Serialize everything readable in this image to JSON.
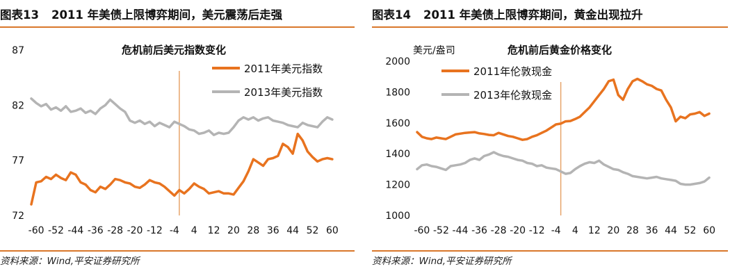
{
  "left": {
    "figure_number": "图表13",
    "figure_title": "2011 年美债上限博弈期间，美元震荡后走强",
    "source": "资料来源：Wind,平安证券研究所"
  },
  "right": {
    "figure_number": "图表14",
    "figure_title": "2011 年美债上限博弈期间，黄金出现拉升",
    "source": "资料来源：Wind,平安证券研究所"
  },
  "colors": {
    "series_2011": "#e8731f",
    "series_2013": "#b4b4b4",
    "marker_line": "#e7a46a",
    "rule": "#d9772a"
  },
  "chart_data": [
    {
      "type": "line",
      "title": "危机前后美元指数变化",
      "xlabel": "",
      "ylabel": "",
      "ylim": [
        72,
        87
      ],
      "yticks": [
        72,
        77,
        82,
        87
      ],
      "xlim": [
        -62,
        62
      ],
      "xticks": [
        "-60",
        "-52",
        "-44",
        "-36",
        "-28",
        "-20",
        "-12",
        "-4",
        "4",
        "12",
        "20",
        "28",
        "36",
        "44",
        "52",
        "60"
      ],
      "vertical_marker_x": -2,
      "grid": false,
      "legend_position": "top-right",
      "series": [
        {
          "name": "2011年美元指数",
          "x": [
            -62,
            -60,
            -58,
            -56,
            -54,
            -52,
            -50,
            -48,
            -46,
            -44,
            -42,
            -40,
            -38,
            -36,
            -34,
            -32,
            -30,
            -28,
            -26,
            -24,
            -22,
            -20,
            -18,
            -16,
            -14,
            -12,
            -10,
            -8,
            -6,
            -4,
            -2,
            0,
            2,
            4,
            6,
            8,
            10,
            12,
            14,
            16,
            18,
            20,
            22,
            24,
            26,
            28,
            30,
            32,
            34,
            36,
            38,
            40,
            42,
            44,
            46,
            48,
            50,
            52,
            54,
            56,
            58,
            60
          ],
          "values": [
            73.0,
            75.0,
            75.1,
            75.5,
            75.3,
            75.7,
            75.4,
            75.2,
            75.9,
            75.7,
            75.0,
            74.8,
            74.3,
            74.1,
            74.6,
            74.4,
            74.8,
            75.3,
            75.2,
            75.0,
            74.9,
            74.6,
            74.5,
            74.8,
            75.2,
            75.0,
            74.9,
            74.6,
            74.2,
            73.8,
            74.3,
            74.0,
            74.4,
            74.9,
            74.6,
            74.4,
            74.0,
            74.1,
            74.2,
            74.0,
            74.0,
            73.9,
            74.5,
            75.1,
            76.0,
            77.1,
            76.8,
            76.5,
            77.1,
            77.2,
            77.4,
            78.5,
            78.2,
            77.6,
            79.4,
            78.8,
            77.8,
            77.3,
            76.9,
            77.1,
            77.2,
            77.1
          ]
        },
        {
          "name": "2013年美元指数",
          "x": [
            -62,
            -60,
            -58,
            -56,
            -54,
            -52,
            -50,
            -48,
            -46,
            -44,
            -42,
            -40,
            -38,
            -36,
            -34,
            -32,
            -30,
            -28,
            -26,
            -24,
            -22,
            -20,
            -18,
            -16,
            -14,
            -12,
            -10,
            -8,
            -6,
            -4,
            -2,
            0,
            2,
            4,
            6,
            8,
            10,
            12,
            14,
            16,
            18,
            20,
            22,
            24,
            26,
            28,
            30,
            32,
            34,
            36,
            38,
            40,
            42,
            44,
            46,
            48,
            50,
            52,
            54,
            56,
            58,
            60
          ],
          "values": [
            82.6,
            82.2,
            81.9,
            82.1,
            81.6,
            81.8,
            81.5,
            81.9,
            81.4,
            81.5,
            81.7,
            81.3,
            81.5,
            81.2,
            81.7,
            82.0,
            82.5,
            82.1,
            81.7,
            81.4,
            80.6,
            80.4,
            80.6,
            80.3,
            80.5,
            80.1,
            80.4,
            80.2,
            80.0,
            80.5,
            80.3,
            80.1,
            79.8,
            79.7,
            79.4,
            79.5,
            79.7,
            79.3,
            79.5,
            79.4,
            79.5,
            80.0,
            80.6,
            80.9,
            80.7,
            80.9,
            80.6,
            80.8,
            80.9,
            80.6,
            80.5,
            80.4,
            80.2,
            80.1,
            80.0,
            80.4,
            80.2,
            80.1,
            80.0,
            80.5,
            80.9,
            80.7
          ]
        }
      ]
    },
    {
      "type": "line",
      "title": "危机前后黄金价格变化",
      "xlabel": "",
      "ylabel": "美元/盎司",
      "ylim": [
        1000,
        2000
      ],
      "yticks": [
        1000,
        1200,
        1400,
        1600,
        1800,
        2000
      ],
      "xlim": [
        -62,
        62
      ],
      "xticks": [
        "-60",
        "-52",
        "-44",
        "-36",
        "-28",
        "-20",
        "-12",
        "-4",
        "4",
        "12",
        "20",
        "28",
        "36",
        "44",
        "52",
        "60"
      ],
      "vertical_marker_x": -2,
      "grid": false,
      "legend_position": "top-left",
      "series": [
        {
          "name": "2011年伦敦现金",
          "x": [
            -62,
            -60,
            -58,
            -56,
            -54,
            -52,
            -50,
            -48,
            -46,
            -44,
            -42,
            -40,
            -38,
            -36,
            -34,
            -32,
            -30,
            -28,
            -26,
            -24,
            -22,
            -20,
            -18,
            -16,
            -14,
            -12,
            -10,
            -8,
            -6,
            -4,
            -2,
            0,
            2,
            4,
            6,
            8,
            10,
            12,
            14,
            16,
            18,
            20,
            22,
            24,
            26,
            28,
            30,
            32,
            34,
            36,
            38,
            40,
            42,
            44,
            46,
            48,
            50,
            52,
            54,
            56,
            58,
            60
          ],
          "values": [
            1540,
            1510,
            1500,
            1495,
            1505,
            1500,
            1495,
            1510,
            1525,
            1530,
            1535,
            1538,
            1540,
            1532,
            1528,
            1522,
            1520,
            1535,
            1525,
            1515,
            1510,
            1500,
            1490,
            1495,
            1510,
            1520,
            1535,
            1550,
            1570,
            1590,
            1595,
            1610,
            1612,
            1625,
            1640,
            1670,
            1700,
            1740,
            1780,
            1820,
            1870,
            1880,
            1780,
            1750,
            1820,
            1870,
            1885,
            1870,
            1850,
            1840,
            1820,
            1810,
            1750,
            1700,
            1610,
            1640,
            1630,
            1655,
            1660,
            1670,
            1645,
            1660
          ]
        },
        {
          "name": "2013年伦敦现金",
          "x": [
            -62,
            -60,
            -58,
            -56,
            -54,
            -52,
            -50,
            -48,
            -46,
            -44,
            -42,
            -40,
            -38,
            -36,
            -34,
            -32,
            -30,
            -28,
            -26,
            -24,
            -22,
            -20,
            -18,
            -16,
            -14,
            -12,
            -10,
            -8,
            -6,
            -4,
            -2,
            0,
            2,
            4,
            6,
            8,
            10,
            12,
            14,
            16,
            18,
            20,
            22,
            24,
            26,
            28,
            30,
            32,
            34,
            36,
            38,
            40,
            42,
            44,
            46,
            48,
            50,
            52,
            54,
            56,
            58,
            60
          ],
          "values": [
            1300,
            1325,
            1330,
            1320,
            1315,
            1305,
            1295,
            1320,
            1325,
            1330,
            1340,
            1360,
            1370,
            1360,
            1385,
            1395,
            1410,
            1395,
            1385,
            1380,
            1370,
            1360,
            1355,
            1340,
            1335,
            1320,
            1325,
            1310,
            1305,
            1300,
            1285,
            1270,
            1275,
            1300,
            1320,
            1335,
            1345,
            1340,
            1355,
            1330,
            1315,
            1300,
            1295,
            1280,
            1270,
            1255,
            1250,
            1245,
            1240,
            1245,
            1250,
            1240,
            1235,
            1230,
            1225,
            1205,
            1200,
            1200,
            1205,
            1210,
            1220,
            1245
          ]
        }
      ]
    }
  ]
}
